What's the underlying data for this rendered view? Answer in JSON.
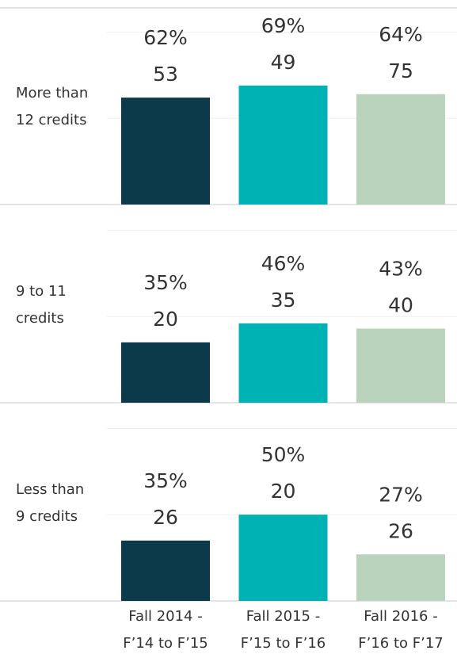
{
  "chart_data": {
    "type": "bar",
    "categories": [
      [
        "Fall 2014 -",
        "F’14 to F’15"
      ],
      [
        "Fall 2015 -",
        "F’15 to F’16"
      ],
      [
        "Fall 2016 -",
        "F’16 to F’17"
      ]
    ],
    "colors": [
      "#0d3a4b",
      "#00b2b4",
      "#b9d3bc"
    ],
    "ylim": [
      0,
      114
    ],
    "yticks": [
      0,
      50,
      100
    ],
    "grid": true,
    "panels": [
      {
        "label": [
          "More than",
          "12 credits"
        ],
        "values": [
          62,
          69,
          64
        ],
        "value_labels": [
          "62%",
          "69%",
          "64%"
        ],
        "counts": [
          53,
          49,
          75
        ]
      },
      {
        "label": [
          "9 to 11",
          "credits"
        ],
        "values": [
          35,
          46,
          43
        ],
        "value_labels": [
          "35%",
          "46%",
          "43%"
        ],
        "counts": [
          20,
          35,
          40
        ]
      },
      {
        "label": [
          "Less than",
          "9 credits"
        ],
        "values": [
          35,
          50,
          27
        ],
        "value_labels": [
          "35%",
          "50%",
          "27%"
        ],
        "counts": [
          26,
          20,
          26
        ]
      }
    ]
  }
}
